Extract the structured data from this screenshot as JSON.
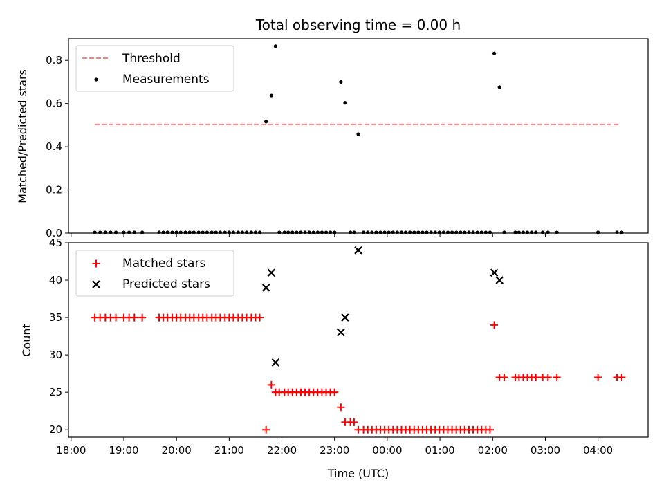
{
  "figure": {
    "title": "Total observing time = 0.00 h"
  },
  "chart_data": [
    {
      "type": "scatter",
      "panel": "top",
      "ylabel": "Matched/Predicted stars",
      "xlabel": "",
      "ylim": [
        0,
        0.9
      ],
      "yticks": [
        0.0,
        0.2,
        0.4,
        0.6,
        0.8
      ],
      "ytick_labels": [
        "0.0",
        "0.2",
        "0.4",
        "0.6",
        "0.8"
      ],
      "legend": {
        "placement": "top-left",
        "entries": [
          "Threshold",
          "Measurements"
        ]
      },
      "series": [
        {
          "name": "Threshold",
          "kind": "line",
          "style": "dashed",
          "color": "#ff7f7f",
          "x": [
            18.45,
            28.4
          ],
          "y": [
            0.5,
            0.5
          ]
        },
        {
          "name": "Measurements",
          "kind": "scatter",
          "marker": "dot",
          "color": "#000000",
          "points": [
            [
              18.45,
              0
            ],
            [
              18.55,
              0
            ],
            [
              18.65,
              0
            ],
            [
              18.75,
              0
            ],
            [
              18.85,
              0
            ],
            [
              19.0,
              0
            ],
            [
              19.1,
              0
            ],
            [
              19.2,
              0
            ],
            [
              19.35,
              0
            ],
            [
              19.67,
              0
            ],
            [
              19.75,
              0
            ],
            [
              19.83,
              0
            ],
            [
              19.92,
              0
            ],
            [
              20.0,
              0
            ],
            [
              20.08,
              0
            ],
            [
              20.17,
              0
            ],
            [
              20.25,
              0
            ],
            [
              20.33,
              0
            ],
            [
              20.42,
              0
            ],
            [
              20.5,
              0
            ],
            [
              20.58,
              0
            ],
            [
              20.67,
              0
            ],
            [
              20.75,
              0
            ],
            [
              20.83,
              0
            ],
            [
              20.92,
              0
            ],
            [
              21.0,
              0
            ],
            [
              21.08,
              0
            ],
            [
              21.17,
              0
            ],
            [
              21.25,
              0
            ],
            [
              21.33,
              0
            ],
            [
              21.42,
              0
            ],
            [
              21.5,
              0
            ],
            [
              21.58,
              0
            ],
            [
              21.7,
              0.513
            ],
            [
              21.8,
              0.634
            ],
            [
              21.88,
              0.862
            ],
            [
              21.95,
              0
            ],
            [
              22.05,
              0
            ],
            [
              22.12,
              0
            ],
            [
              22.2,
              0
            ],
            [
              22.28,
              0
            ],
            [
              22.36,
              0
            ],
            [
              22.44,
              0
            ],
            [
              22.52,
              0
            ],
            [
              22.6,
              0
            ],
            [
              22.68,
              0
            ],
            [
              22.76,
              0
            ],
            [
              22.84,
              0
            ],
            [
              22.92,
              0
            ],
            [
              23.0,
              0
            ],
            [
              23.12,
              0.697
            ],
            [
              23.2,
              0.6
            ],
            [
              23.3,
              0
            ],
            [
              23.37,
              0
            ],
            [
              23.45,
              0.455
            ],
            [
              23.55,
              0
            ],
            [
              23.63,
              0
            ],
            [
              23.71,
              0
            ],
            [
              23.79,
              0
            ],
            [
              23.87,
              0
            ],
            [
              23.95,
              0
            ],
            [
              24.03,
              0
            ],
            [
              24.11,
              0
            ],
            [
              24.19,
              0
            ],
            [
              24.27,
              0
            ],
            [
              24.35,
              0
            ],
            [
              24.43,
              0
            ],
            [
              24.51,
              0
            ],
            [
              24.59,
              0
            ],
            [
              24.67,
              0
            ],
            [
              24.75,
              0
            ],
            [
              24.83,
              0
            ],
            [
              24.91,
              0
            ],
            [
              24.99,
              0
            ],
            [
              25.07,
              0
            ],
            [
              25.15,
              0
            ],
            [
              25.23,
              0
            ],
            [
              25.31,
              0
            ],
            [
              25.39,
              0
            ],
            [
              25.47,
              0
            ],
            [
              25.55,
              0
            ],
            [
              25.63,
              0
            ],
            [
              25.71,
              0
            ],
            [
              25.79,
              0
            ],
            [
              25.87,
              0
            ],
            [
              25.95,
              0
            ],
            [
              26.03,
              0.829
            ],
            [
              26.13,
              0.673
            ],
            [
              26.22,
              0
            ],
            [
              26.43,
              0
            ],
            [
              26.5,
              0
            ],
            [
              26.58,
              0
            ],
            [
              26.66,
              0
            ],
            [
              26.74,
              0
            ],
            [
              26.82,
              0
            ],
            [
              26.95,
              0
            ],
            [
              27.05,
              0
            ],
            [
              27.22,
              0
            ],
            [
              28.0,
              0
            ],
            [
              28.36,
              0
            ],
            [
              28.45,
              0
            ]
          ]
        }
      ]
    },
    {
      "type": "scatter",
      "panel": "bottom",
      "ylabel": "Count",
      "xlabel": "Time (UTC)",
      "ylim": [
        19,
        45
      ],
      "yticks": [
        20,
        25,
        30,
        35,
        40,
        45
      ],
      "ytick_labels": [
        "20",
        "25",
        "30",
        "35",
        "40",
        "45"
      ],
      "xlim": [
        17.95,
        28.95
      ],
      "xticks": [
        18,
        19,
        20,
        21,
        22,
        23,
        24,
        25,
        26,
        27,
        28
      ],
      "xtick_labels": [
        "18:00",
        "19:00",
        "20:00",
        "21:00",
        "22:00",
        "23:00",
        "00:00",
        "01:00",
        "02:00",
        "03:00",
        "04:00"
      ],
      "legend": {
        "placement": "top-left",
        "entries": [
          "Matched stars",
          "Predicted stars"
        ]
      },
      "series": [
        {
          "name": "Matched stars",
          "kind": "scatter",
          "marker": "plus",
          "color": "#ff0000",
          "points": [
            [
              18.45,
              35
            ],
            [
              18.55,
              35
            ],
            [
              18.65,
              35
            ],
            [
              18.75,
              35
            ],
            [
              18.85,
              35
            ],
            [
              19.0,
              35
            ],
            [
              19.1,
              35
            ],
            [
              19.2,
              35
            ],
            [
              19.35,
              35
            ],
            [
              19.67,
              35
            ],
            [
              19.75,
              35
            ],
            [
              19.83,
              35
            ],
            [
              19.92,
              35
            ],
            [
              20.0,
              35
            ],
            [
              20.08,
              35
            ],
            [
              20.17,
              35
            ],
            [
              20.25,
              35
            ],
            [
              20.33,
              35
            ],
            [
              20.42,
              35
            ],
            [
              20.5,
              35
            ],
            [
              20.58,
              35
            ],
            [
              20.67,
              35
            ],
            [
              20.75,
              35
            ],
            [
              20.83,
              35
            ],
            [
              20.92,
              35
            ],
            [
              21.0,
              35
            ],
            [
              21.08,
              35
            ],
            [
              21.17,
              35
            ],
            [
              21.25,
              35
            ],
            [
              21.33,
              35
            ],
            [
              21.42,
              35
            ],
            [
              21.5,
              35
            ],
            [
              21.58,
              35
            ],
            [
              21.7,
              20
            ],
            [
              21.8,
              26
            ],
            [
              21.88,
              25
            ],
            [
              21.95,
              25
            ],
            [
              22.05,
              25
            ],
            [
              22.12,
              25
            ],
            [
              22.2,
              25
            ],
            [
              22.28,
              25
            ],
            [
              22.36,
              25
            ],
            [
              22.44,
              25
            ],
            [
              22.52,
              25
            ],
            [
              22.6,
              25
            ],
            [
              22.68,
              25
            ],
            [
              22.76,
              25
            ],
            [
              22.84,
              25
            ],
            [
              22.92,
              25
            ],
            [
              23.0,
              25
            ],
            [
              23.12,
              23
            ],
            [
              23.2,
              21
            ],
            [
              23.3,
              21
            ],
            [
              23.37,
              21
            ],
            [
              23.45,
              20
            ],
            [
              23.55,
              20
            ],
            [
              23.63,
              20
            ],
            [
              23.71,
              20
            ],
            [
              23.79,
              20
            ],
            [
              23.87,
              20
            ],
            [
              23.95,
              20
            ],
            [
              24.03,
              20
            ],
            [
              24.11,
              20
            ],
            [
              24.19,
              20
            ],
            [
              24.27,
              20
            ],
            [
              24.35,
              20
            ],
            [
              24.43,
              20
            ],
            [
              24.51,
              20
            ],
            [
              24.59,
              20
            ],
            [
              24.67,
              20
            ],
            [
              24.75,
              20
            ],
            [
              24.83,
              20
            ],
            [
              24.91,
              20
            ],
            [
              24.99,
              20
            ],
            [
              25.07,
              20
            ],
            [
              25.15,
              20
            ],
            [
              25.23,
              20
            ],
            [
              25.31,
              20
            ],
            [
              25.39,
              20
            ],
            [
              25.47,
              20
            ],
            [
              25.55,
              20
            ],
            [
              25.63,
              20
            ],
            [
              25.71,
              20
            ],
            [
              25.79,
              20
            ],
            [
              25.87,
              20
            ],
            [
              25.95,
              20
            ],
            [
              26.03,
              34
            ],
            [
              26.13,
              27
            ],
            [
              26.22,
              27
            ],
            [
              26.43,
              27
            ],
            [
              26.5,
              27
            ],
            [
              26.58,
              27
            ],
            [
              26.66,
              27
            ],
            [
              26.74,
              27
            ],
            [
              26.82,
              27
            ],
            [
              26.95,
              27
            ],
            [
              27.05,
              27
            ],
            [
              27.22,
              27
            ],
            [
              28.0,
              27
            ],
            [
              28.36,
              27
            ],
            [
              28.45,
              27
            ]
          ]
        },
        {
          "name": "Predicted stars",
          "kind": "scatter",
          "marker": "x",
          "color": "#000000",
          "points": [
            [
              21.7,
              39
            ],
            [
              21.8,
              41
            ],
            [
              21.88,
              29
            ],
            [
              23.12,
              33
            ],
            [
              23.2,
              35
            ],
            [
              23.45,
              44
            ],
            [
              26.03,
              41
            ],
            [
              26.13,
              40
            ]
          ]
        }
      ]
    }
  ]
}
